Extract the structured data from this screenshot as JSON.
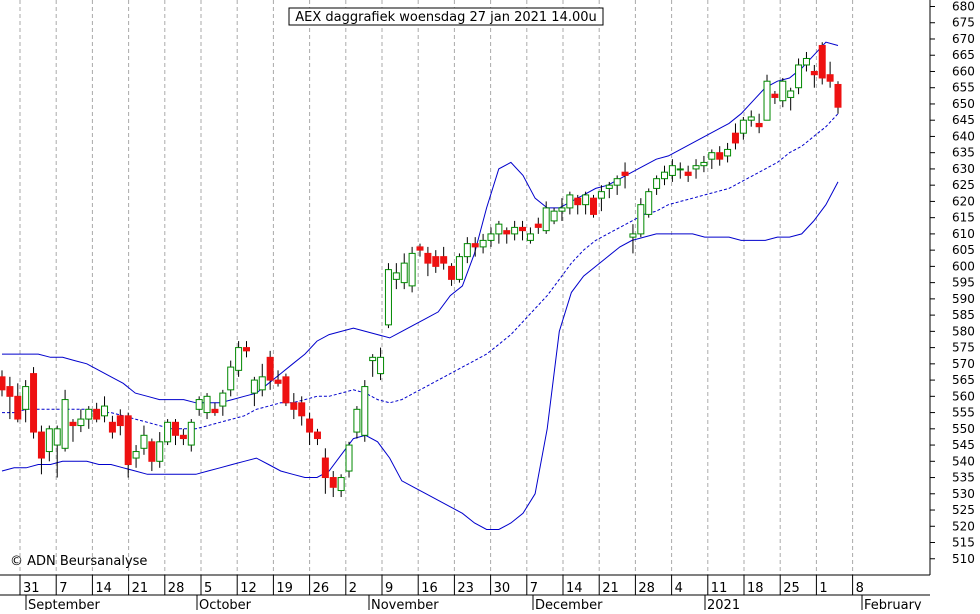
{
  "chart_data": {
    "type": "candlestick",
    "title": "AEX daggrafiek woensdag 27 jan 2021 14.00u",
    "watermark": "© ADN Beursanalyse",
    "ylim": [
      505,
      682
    ],
    "y_ticks": [
      510,
      515,
      520,
      525,
      530,
      535,
      540,
      545,
      550,
      555,
      560,
      565,
      570,
      575,
      580,
      585,
      590,
      595,
      600,
      605,
      610,
      615,
      620,
      625,
      630,
      635,
      640,
      645,
      650,
      655,
      660,
      665,
      670,
      675,
      680
    ],
    "x_tick_labels": [
      "31",
      "7",
      "14",
      "21",
      "28",
      "5",
      "12",
      "19",
      "26",
      "2",
      "9",
      "16",
      "23",
      "30",
      "7",
      "14",
      "21",
      "28",
      "4",
      "11",
      "18",
      "25",
      "1",
      "8"
    ],
    "month_labels": [
      "September",
      "October",
      "November",
      "December",
      "2021",
      "February"
    ],
    "colors": {
      "up": "#ffffff",
      "down": "#ee1111",
      "up_border": "#008800",
      "bands": "#0000cc",
      "grid": "#aaaaaa"
    },
    "candles": [
      {
        "o": 566,
        "h": 568,
        "l": 560,
        "c": 562
      },
      {
        "o": 563,
        "h": 566,
        "l": 553,
        "c": 560
      },
      {
        "o": 560,
        "h": 564,
        "l": 552,
        "c": 553
      },
      {
        "o": 556,
        "h": 565,
        "l": 552,
        "c": 563
      },
      {
        "o": 567,
        "h": 569,
        "l": 547,
        "c": 549
      },
      {
        "o": 549,
        "h": 551,
        "l": 536,
        "c": 541
      },
      {
        "o": 543,
        "h": 551,
        "l": 540,
        "c": 550
      },
      {
        "o": 545,
        "h": 551,
        "l": 535,
        "c": 550
      },
      {
        "o": 544,
        "h": 562,
        "l": 543,
        "c": 559
      },
      {
        "o": 552,
        "h": 553,
        "l": 546,
        "c": 551
      },
      {
        "o": 551,
        "h": 556,
        "l": 549,
        "c": 553
      },
      {
        "o": 553,
        "h": 557,
        "l": 550,
        "c": 556
      },
      {
        "o": 556,
        "h": 558,
        "l": 552,
        "c": 553
      },
      {
        "o": 554,
        "h": 560,
        "l": 552,
        "c": 557
      },
      {
        "o": 552,
        "h": 554,
        "l": 547,
        "c": 549
      },
      {
        "o": 554,
        "h": 556,
        "l": 548,
        "c": 551
      },
      {
        "o": 554,
        "h": 555,
        "l": 535,
        "c": 539
      },
      {
        "o": 541,
        "h": 545,
        "l": 538,
        "c": 543
      },
      {
        "o": 544,
        "h": 551,
        "l": 542,
        "c": 548
      },
      {
        "o": 546,
        "h": 547,
        "l": 537,
        "c": 540
      },
      {
        "o": 540,
        "h": 549,
        "l": 538,
        "c": 546
      },
      {
        "o": 546,
        "h": 553,
        "l": 545,
        "c": 552
      },
      {
        "o": 552,
        "h": 553,
        "l": 545,
        "c": 548
      },
      {
        "o": 548,
        "h": 550,
        "l": 545,
        "c": 547
      },
      {
        "o": 545,
        "h": 553,
        "l": 543,
        "c": 552
      },
      {
        "o": 556,
        "h": 560,
        "l": 554,
        "c": 559
      },
      {
        "o": 555,
        "h": 561,
        "l": 553,
        "c": 560
      },
      {
        "o": 556,
        "h": 558,
        "l": 554,
        "c": 555
      },
      {
        "o": 557,
        "h": 562,
        "l": 554,
        "c": 561
      },
      {
        "o": 562,
        "h": 571,
        "l": 560,
        "c": 569
      },
      {
        "o": 568,
        "h": 577,
        "l": 566,
        "c": 575
      },
      {
        "o": 575,
        "h": 577,
        "l": 572,
        "c": 574
      },
      {
        "o": 561,
        "h": 566,
        "l": 557,
        "c": 565
      },
      {
        "o": 562,
        "h": 570,
        "l": 560,
        "c": 566
      },
      {
        "o": 572,
        "h": 574,
        "l": 562,
        "c": 565
      },
      {
        "o": 565,
        "h": 568,
        "l": 563,
        "c": 564
      },
      {
        "o": 566,
        "h": 567,
        "l": 557,
        "c": 558
      },
      {
        "o": 558,
        "h": 561,
        "l": 553,
        "c": 556
      },
      {
        "o": 558,
        "h": 560,
        "l": 551,
        "c": 554
      },
      {
        "o": 553,
        "h": 555,
        "l": 545,
        "c": 549
      },
      {
        "o": 549,
        "h": 550,
        "l": 545,
        "c": 547
      },
      {
        "o": 541,
        "h": 544,
        "l": 530,
        "c": 535
      },
      {
        "o": 535,
        "h": 537,
        "l": 529,
        "c": 532
      },
      {
        "o": 531,
        "h": 536,
        "l": 529,
        "c": 535
      },
      {
        "o": 537,
        "h": 546,
        "l": 535,
        "c": 545
      },
      {
        "o": 549,
        "h": 557,
        "l": 547,
        "c": 556
      },
      {
        "o": 548,
        "h": 565,
        "l": 546,
        "c": 563
      },
      {
        "o": 571,
        "h": 573,
        "l": 566,
        "c": 572
      },
      {
        "o": 567,
        "h": 575,
        "l": 565,
        "c": 572
      },
      {
        "o": 582,
        "h": 601,
        "l": 581,
        "c": 599
      },
      {
        "o": 596,
        "h": 601,
        "l": 593,
        "c": 598
      },
      {
        "o": 595,
        "h": 604,
        "l": 593,
        "c": 601
      },
      {
        "o": 594,
        "h": 606,
        "l": 592,
        "c": 604
      },
      {
        "o": 606,
        "h": 607,
        "l": 603,
        "c": 605
      },
      {
        "o": 604,
        "h": 606,
        "l": 597,
        "c": 601
      },
      {
        "o": 603,
        "h": 605,
        "l": 598,
        "c": 600
      },
      {
        "o": 603,
        "h": 606,
        "l": 599,
        "c": 601
      },
      {
        "o": 600,
        "h": 601,
        "l": 594,
        "c": 596
      },
      {
        "o": 596,
        "h": 604,
        "l": 595,
        "c": 603
      },
      {
        "o": 603,
        "h": 609,
        "l": 601,
        "c": 607
      },
      {
        "o": 607,
        "h": 609,
        "l": 603,
        "c": 606
      },
      {
        "o": 606,
        "h": 610,
        "l": 604,
        "c": 608
      },
      {
        "o": 608,
        "h": 612,
        "l": 606,
        "c": 610
      },
      {
        "o": 610,
        "h": 614,
        "l": 607,
        "c": 613
      },
      {
        "o": 611,
        "h": 612,
        "l": 607,
        "c": 610
      },
      {
        "o": 610,
        "h": 614,
        "l": 608,
        "c": 612
      },
      {
        "o": 612,
        "h": 614,
        "l": 608,
        "c": 611
      },
      {
        "o": 608,
        "h": 612,
        "l": 607,
        "c": 610
      },
      {
        "o": 613,
        "h": 615,
        "l": 610,
        "c": 612
      },
      {
        "o": 611,
        "h": 620,
        "l": 610,
        "c": 618
      },
      {
        "o": 614,
        "h": 618,
        "l": 613,
        "c": 617
      },
      {
        "o": 617,
        "h": 621,
        "l": 614,
        "c": 618
      },
      {
        "o": 618,
        "h": 623,
        "l": 616,
        "c": 622
      },
      {
        "o": 621,
        "h": 622,
        "l": 616,
        "c": 619
      },
      {
        "o": 619,
        "h": 623,
        "l": 616,
        "c": 622
      },
      {
        "o": 621,
        "h": 622,
        "l": 615,
        "c": 616
      },
      {
        "o": 621,
        "h": 625,
        "l": 617,
        "c": 623
      },
      {
        "o": 624,
        "h": 626,
        "l": 621,
        "c": 625
      },
      {
        "o": 625,
        "h": 628,
        "l": 622,
        "c": 627
      },
      {
        "o": 629,
        "h": 632,
        "l": 624,
        "c": 628
      },
      {
        "o": 609,
        "h": 613,
        "l": 604,
        "c": 610
      },
      {
        "o": 610,
        "h": 621,
        "l": 609,
        "c": 619
      },
      {
        "o": 616,
        "h": 624,
        "l": 615,
        "c": 623
      },
      {
        "o": 624,
        "h": 628,
        "l": 622,
        "c": 627
      },
      {
        "o": 627,
        "h": 631,
        "l": 625,
        "c": 629
      },
      {
        "o": 628,
        "h": 633,
        "l": 626,
        "c": 631
      },
      {
        "o": 630,
        "h": 632,
        "l": 627,
        "c": 630
      },
      {
        "o": 629,
        "h": 631,
        "l": 626,
        "c": 628
      },
      {
        "o": 630,
        "h": 633,
        "l": 627,
        "c": 631
      },
      {
        "o": 631,
        "h": 634,
        "l": 629,
        "c": 632
      },
      {
        "o": 633,
        "h": 636,
        "l": 630,
        "c": 635
      },
      {
        "o": 635,
        "h": 637,
        "l": 631,
        "c": 633
      },
      {
        "o": 634,
        "h": 638,
        "l": 632,
        "c": 636
      },
      {
        "o": 641,
        "h": 644,
        "l": 636,
        "c": 638
      },
      {
        "o": 641,
        "h": 646,
        "l": 639,
        "c": 645
      },
      {
        "o": 645,
        "h": 648,
        "l": 643,
        "c": 646
      },
      {
        "o": 644,
        "h": 647,
        "l": 641,
        "c": 643
      },
      {
        "o": 645,
        "h": 659,
        "l": 645,
        "c": 657
      },
      {
        "o": 653,
        "h": 654,
        "l": 650,
        "c": 652
      },
      {
        "o": 651,
        "h": 658,
        "l": 649,
        "c": 657
      },
      {
        "o": 652,
        "h": 655,
        "l": 648,
        "c": 654
      },
      {
        "o": 655,
        "h": 664,
        "l": 653,
        "c": 662
      },
      {
        "o": 662,
        "h": 666,
        "l": 660,
        "c": 664
      },
      {
        "o": 660,
        "h": 662,
        "l": 655,
        "c": 659
      },
      {
        "o": 668,
        "h": 669,
        "l": 656,
        "c": 658
      },
      {
        "o": 659,
        "h": 663,
        "l": 655,
        "c": 657
      },
      {
        "o": 656,
        "h": 657,
        "l": 647,
        "c": 649
      }
    ],
    "bollinger_upper": [
      573,
      573,
      573,
      573,
      572,
      572,
      571,
      570,
      568,
      566,
      564,
      561,
      560,
      559,
      559,
      559,
      558,
      558,
      558,
      559,
      560,
      561,
      564,
      567,
      570,
      573,
      577,
      579,
      580,
      581,
      580,
      579,
      578,
      580,
      582,
      584,
      586,
      591,
      594,
      604,
      618,
      630,
      632,
      628,
      621,
      618,
      618,
      620,
      622,
      624,
      625,
      627,
      629,
      631,
      633,
      634,
      636,
      638,
      640,
      642,
      644,
      647,
      651,
      655,
      657,
      658,
      661,
      665,
      669,
      668
    ],
    "bollinger_mid": [
      555,
      555,
      556,
      556,
      556,
      556,
      556,
      556,
      555,
      555,
      554,
      553,
      552,
      551,
      550,
      550,
      550,
      551,
      552,
      553,
      554,
      556,
      557,
      558,
      558,
      559,
      560,
      560,
      561,
      562,
      561,
      559,
      558,
      559,
      561,
      563,
      565,
      567,
      569,
      571,
      573,
      576,
      579,
      583,
      587,
      591,
      596,
      601,
      605,
      608,
      610,
      612,
      614,
      616,
      617,
      619,
      620,
      621,
      622,
      623,
      624,
      626,
      628,
      630,
      632,
      635,
      637,
      640,
      643,
      647
    ],
    "bollinger_lower": [
      537,
      538,
      538,
      539,
      539,
      540,
      540,
      540,
      539,
      539,
      538,
      537,
      536,
      536,
      536,
      536,
      536,
      537,
      538,
      539,
      540,
      541,
      539,
      537,
      536,
      535,
      535,
      537,
      542,
      547,
      548,
      546,
      541,
      534,
      532,
      530,
      528,
      526,
      524,
      521,
      519,
      519,
      521,
      524,
      530,
      550,
      580,
      592,
      597,
      600,
      603,
      606,
      608,
      609,
      610,
      610,
      610,
      610,
      609,
      609,
      609,
      608,
      608,
      608,
      609,
      609,
      610,
      614,
      619,
      626
    ]
  }
}
